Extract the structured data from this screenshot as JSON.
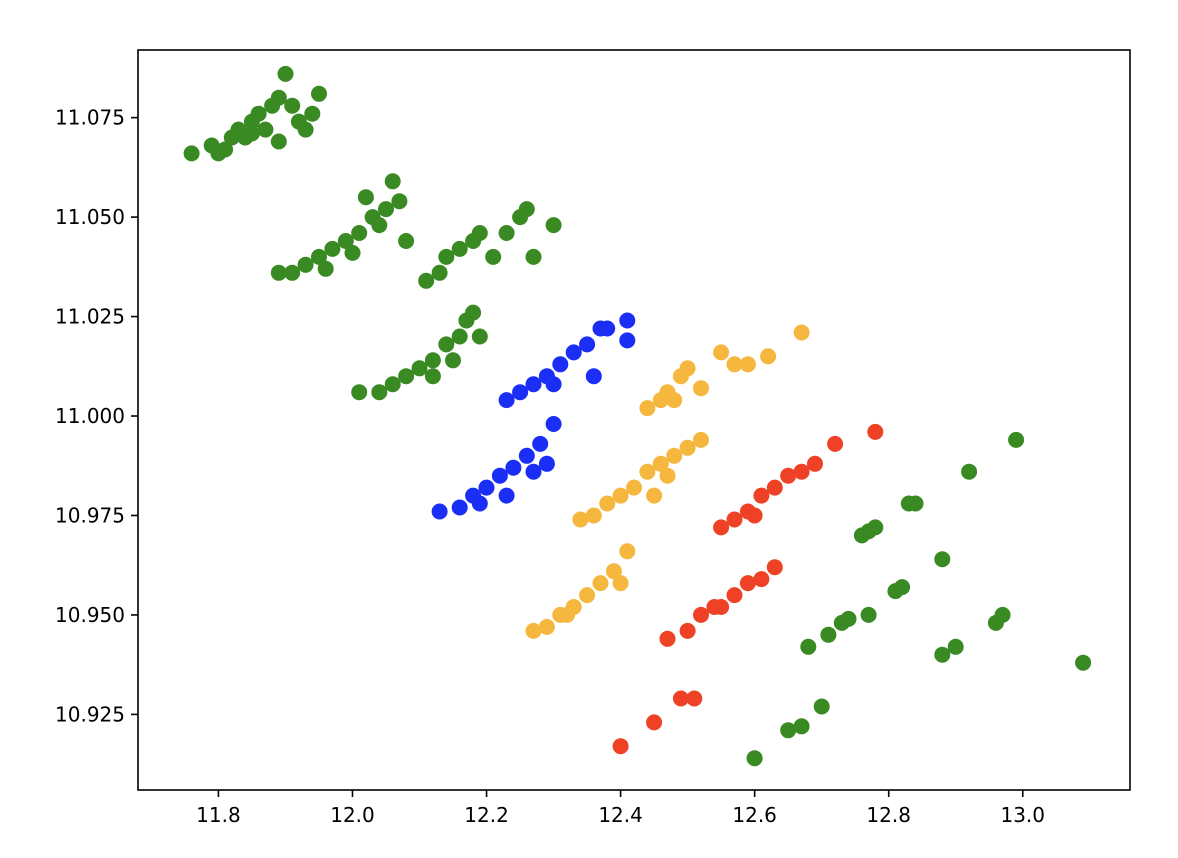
{
  "chart_data": {
    "type": "scatter",
    "title": "",
    "xlabel": "",
    "ylabel": "",
    "xlim": [
      11.68,
      13.16
    ],
    "ylim": [
      10.906,
      11.092
    ],
    "x_ticks": [
      11.8,
      12.0,
      12.2,
      12.4,
      12.6,
      12.8,
      13.0
    ],
    "x_tick_labels": [
      "11.8",
      "12.0",
      "12.2",
      "12.4",
      "12.6",
      "12.8",
      "13.0"
    ],
    "y_ticks": [
      10.925,
      10.95,
      10.975,
      11.0,
      11.025,
      11.05,
      11.075
    ],
    "y_tick_labels": [
      "10.925",
      "10.950",
      "10.975",
      "11.000",
      "11.025",
      "11.050",
      "11.075"
    ],
    "grid": false,
    "legend": "none",
    "series": [
      {
        "color": "#3a8a24",
        "note_group": "upper-left bands",
        "points": [
          [
            11.76,
            11.066
          ],
          [
            11.79,
            11.068
          ],
          [
            11.8,
            11.066
          ],
          [
            11.82,
            11.07
          ],
          [
            11.83,
            11.072
          ],
          [
            11.84,
            11.07
          ],
          [
            11.85,
            11.074
          ],
          [
            11.86,
            11.076
          ],
          [
            11.87,
            11.072
          ],
          [
            11.88,
            11.078
          ],
          [
            11.89,
            11.08
          ],
          [
            11.9,
            11.086
          ],
          [
            11.91,
            11.078
          ],
          [
            11.92,
            11.074
          ],
          [
            11.93,
            11.072
          ],
          [
            11.94,
            11.076
          ],
          [
            11.95,
            11.081
          ],
          [
            11.89,
            11.069
          ],
          [
            11.81,
            11.067
          ],
          [
            11.85,
            11.071
          ],
          [
            11.89,
            11.036
          ],
          [
            11.91,
            11.036
          ],
          [
            11.93,
            11.038
          ],
          [
            11.95,
            11.04
          ],
          [
            11.97,
            11.042
          ],
          [
            11.99,
            11.044
          ],
          [
            12.01,
            11.046
          ],
          [
            12.03,
            11.05
          ],
          [
            12.05,
            11.052
          ],
          [
            12.06,
            11.059
          ],
          [
            12.07,
            11.054
          ],
          [
            12.08,
            11.044
          ],
          [
            11.96,
            11.037
          ],
          [
            12.0,
            11.041
          ],
          [
            12.04,
            11.048
          ],
          [
            12.02,
            11.055
          ],
          [
            12.11,
            11.034
          ],
          [
            12.13,
            11.036
          ],
          [
            12.14,
            11.04
          ],
          [
            12.16,
            11.042
          ],
          [
            12.18,
            11.044
          ],
          [
            12.19,
            11.046
          ],
          [
            12.21,
            11.04
          ],
          [
            12.23,
            11.046
          ],
          [
            12.25,
            11.05
          ],
          [
            12.26,
            11.052
          ],
          [
            12.27,
            11.04
          ],
          [
            12.3,
            11.048
          ],
          [
            12.01,
            11.006
          ],
          [
            12.04,
            11.006
          ],
          [
            12.06,
            11.008
          ],
          [
            12.08,
            11.01
          ],
          [
            12.1,
            11.012
          ],
          [
            12.12,
            11.014
          ],
          [
            12.14,
            11.018
          ],
          [
            12.16,
            11.02
          ],
          [
            12.17,
            11.024
          ],
          [
            12.18,
            11.026
          ],
          [
            12.19,
            11.02
          ],
          [
            12.12,
            11.01
          ],
          [
            12.15,
            11.014
          ]
        ]
      },
      {
        "color": "#1a2ef5",
        "note_group": "blue bands",
        "points": [
          [
            12.23,
            11.004
          ],
          [
            12.25,
            11.006
          ],
          [
            12.27,
            11.008
          ],
          [
            12.29,
            11.01
          ],
          [
            12.31,
            11.013
          ],
          [
            12.33,
            11.016
          ],
          [
            12.35,
            11.018
          ],
          [
            12.37,
            11.022
          ],
          [
            12.38,
            11.022
          ],
          [
            12.41,
            11.024
          ],
          [
            12.41,
            11.019
          ],
          [
            12.36,
            11.01
          ],
          [
            12.3,
            11.008
          ],
          [
            12.13,
            10.976
          ],
          [
            12.16,
            10.977
          ],
          [
            12.18,
            10.98
          ],
          [
            12.2,
            10.982
          ],
          [
            12.22,
            10.985
          ],
          [
            12.24,
            10.987
          ],
          [
            12.26,
            10.99
          ],
          [
            12.28,
            10.993
          ],
          [
            12.3,
            10.998
          ],
          [
            12.29,
            10.988
          ],
          [
            12.27,
            10.986
          ],
          [
            12.23,
            10.98
          ],
          [
            12.19,
            10.978
          ]
        ]
      },
      {
        "color": "#f5b73d",
        "note_group": "yellow bands",
        "points": [
          [
            12.44,
            11.002
          ],
          [
            12.46,
            11.004
          ],
          [
            12.47,
            11.006
          ],
          [
            12.49,
            11.01
          ],
          [
            12.5,
            11.012
          ],
          [
            12.52,
            11.007
          ],
          [
            12.55,
            11.016
          ],
          [
            12.57,
            11.013
          ],
          [
            12.59,
            11.013
          ],
          [
            12.62,
            11.015
          ],
          [
            12.67,
            11.021
          ],
          [
            12.48,
            11.004
          ],
          [
            12.34,
            10.974
          ],
          [
            12.36,
            10.975
          ],
          [
            12.38,
            10.978
          ],
          [
            12.4,
            10.98
          ],
          [
            12.42,
            10.982
          ],
          [
            12.44,
            10.986
          ],
          [
            12.46,
            10.988
          ],
          [
            12.48,
            10.99
          ],
          [
            12.5,
            10.992
          ],
          [
            12.52,
            10.994
          ],
          [
            12.47,
            10.985
          ],
          [
            12.45,
            10.98
          ],
          [
            12.27,
            10.946
          ],
          [
            12.29,
            10.947
          ],
          [
            12.31,
            10.95
          ],
          [
            12.33,
            10.952
          ],
          [
            12.35,
            10.955
          ],
          [
            12.37,
            10.958
          ],
          [
            12.39,
            10.961
          ],
          [
            12.41,
            10.966
          ],
          [
            12.4,
            10.958
          ],
          [
            12.32,
            10.95
          ]
        ]
      },
      {
        "color": "#ef4125",
        "note_group": "red bands",
        "points": [
          [
            12.55,
            10.972
          ],
          [
            12.57,
            10.974
          ],
          [
            12.59,
            10.976
          ],
          [
            12.61,
            10.98
          ],
          [
            12.63,
            10.982
          ],
          [
            12.65,
            10.985
          ],
          [
            12.67,
            10.986
          ],
          [
            12.69,
            10.988
          ],
          [
            12.72,
            10.993
          ],
          [
            12.78,
            10.996
          ],
          [
            12.6,
            10.975
          ],
          [
            12.47,
            10.944
          ],
          [
            12.5,
            10.946
          ],
          [
            12.52,
            10.95
          ],
          [
            12.55,
            10.952
          ],
          [
            12.57,
            10.955
          ],
          [
            12.59,
            10.958
          ],
          [
            12.61,
            10.959
          ],
          [
            12.63,
            10.962
          ],
          [
            12.54,
            10.952
          ],
          [
            12.4,
            10.917
          ],
          [
            12.45,
            10.923
          ],
          [
            12.49,
            10.929
          ],
          [
            12.51,
            10.929
          ]
        ]
      },
      {
        "color": "#3a8a24",
        "note_group": "lower-right sparse bands",
        "points": [
          [
            12.76,
            10.97
          ],
          [
            12.78,
            10.972
          ],
          [
            12.83,
            10.978
          ],
          [
            12.84,
            10.978
          ],
          [
            12.92,
            10.986
          ],
          [
            12.99,
            10.994
          ],
          [
            12.77,
            10.971
          ],
          [
            12.68,
            10.942
          ],
          [
            12.71,
            10.945
          ],
          [
            12.74,
            10.949
          ],
          [
            12.77,
            10.95
          ],
          [
            12.81,
            10.956
          ],
          [
            12.82,
            10.957
          ],
          [
            12.88,
            10.964
          ],
          [
            12.73,
            10.948
          ],
          [
            12.6,
            10.914
          ],
          [
            12.65,
            10.921
          ],
          [
            12.67,
            10.922
          ],
          [
            12.7,
            10.927
          ],
          [
            12.88,
            10.94
          ],
          [
            12.9,
            10.942
          ],
          [
            12.96,
            10.948
          ],
          [
            12.97,
            10.95
          ],
          [
            13.09,
            10.938
          ]
        ]
      }
    ]
  }
}
